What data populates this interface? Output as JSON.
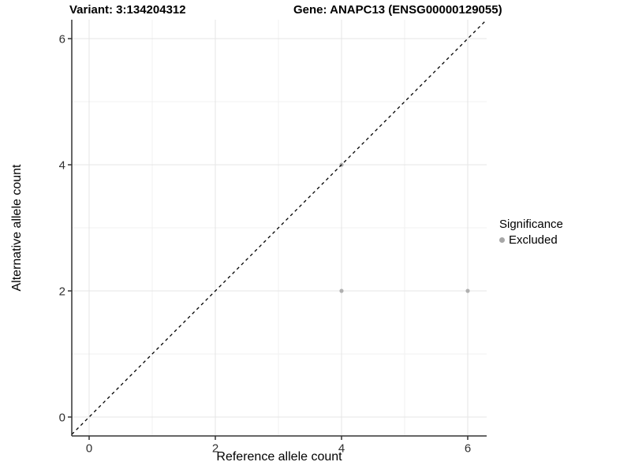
{
  "chart_data": {
    "type": "scatter",
    "title_variant": "Variant: 3:134204312",
    "title_gene": "Gene: ANAPC13 (ENSG00000129055)",
    "xlabel": "Reference allele count",
    "ylabel": "Alternative allele count",
    "xticks": [
      0,
      2,
      4,
      6
    ],
    "yticks": [
      0,
      2,
      4,
      6
    ],
    "minor_xticks": [
      1,
      3,
      5
    ],
    "minor_yticks": [
      1,
      3,
      5
    ],
    "xlim": [
      -0.3,
      6.3
    ],
    "ylim": [
      -0.3,
      6.3
    ],
    "grid": "major and minor, light gray on white",
    "identity_line": {
      "slope": 1,
      "intercept": 0,
      "style": "dashed",
      "color": "#000000"
    },
    "series": [
      {
        "name": "Excluded",
        "color": "#b0b0b0",
        "points": [
          {
            "x": 4,
            "y": 2
          },
          {
            "x": 6,
            "y": 2
          },
          {
            "x": 4,
            "y": 4
          }
        ]
      }
    ],
    "legend": {
      "title": "Significance",
      "position": "right",
      "entries": [
        {
          "label": "Excluded",
          "color": "#a6a6a6"
        }
      ]
    },
    "colors": {
      "axis_line": "#333333",
      "tick_mark": "#333333",
      "tick_label": "#303030",
      "grid_major": "#e5e5e5",
      "grid_minor": "#f1f1f1",
      "point": "#b0b0b0"
    }
  }
}
